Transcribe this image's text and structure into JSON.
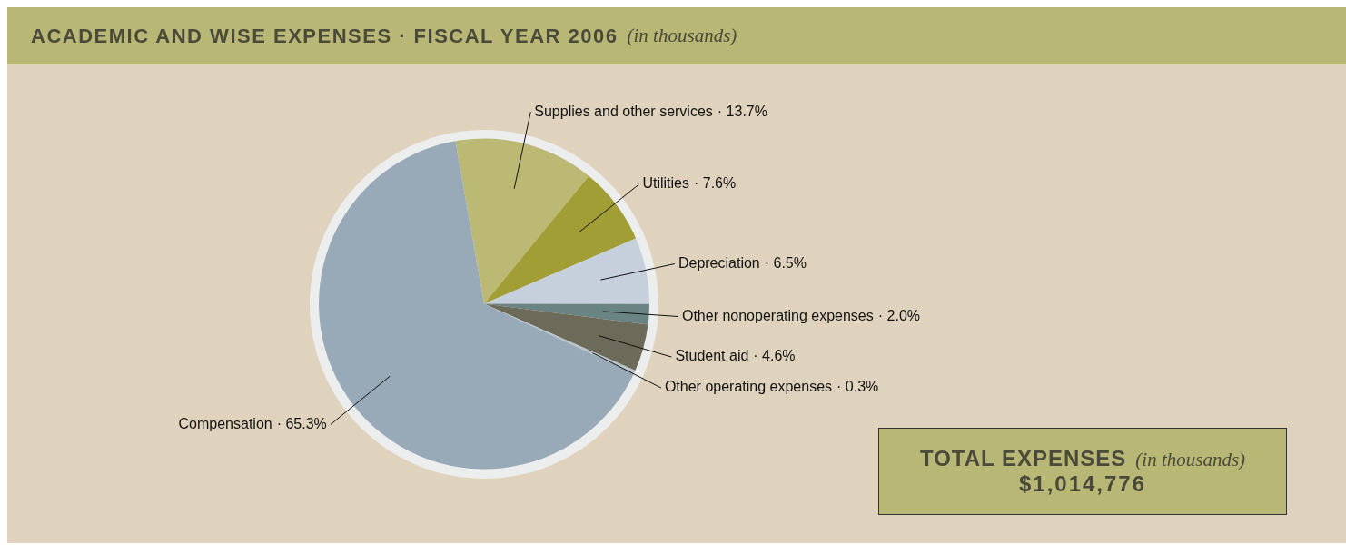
{
  "chart_data": {
    "type": "pie",
    "title": "ACADEMIC AND WISE EXPENSES · FISCAL YEAR 2006",
    "subtitle": "(in thousands)",
    "categories": [
      "Supplies and other services",
      "Utilities",
      "Depreciation",
      "Other nonoperating expenses",
      "Student aid",
      "Other operating expenses",
      "Compensation"
    ],
    "values": [
      13.7,
      7.6,
      6.5,
      2.0,
      4.6,
      0.3,
      65.3
    ],
    "value_labels": [
      "· 13.7%",
      "· 7.6%",
      "· 6.5%",
      "· 2.0%",
      "· 4.6%",
      "· 0.3%",
      "· 65.3%"
    ],
    "colors": [
      "#bbb974",
      "#a19e36",
      "#c5d0dc",
      "#6a8383",
      "#6c6b5a",
      "#b8c4cc",
      "#98a9b8"
    ],
    "legend": false,
    "annotations": [
      "TOTAL EXPENSES",
      "(in thousands)",
      "$1,014,776"
    ]
  }
}
